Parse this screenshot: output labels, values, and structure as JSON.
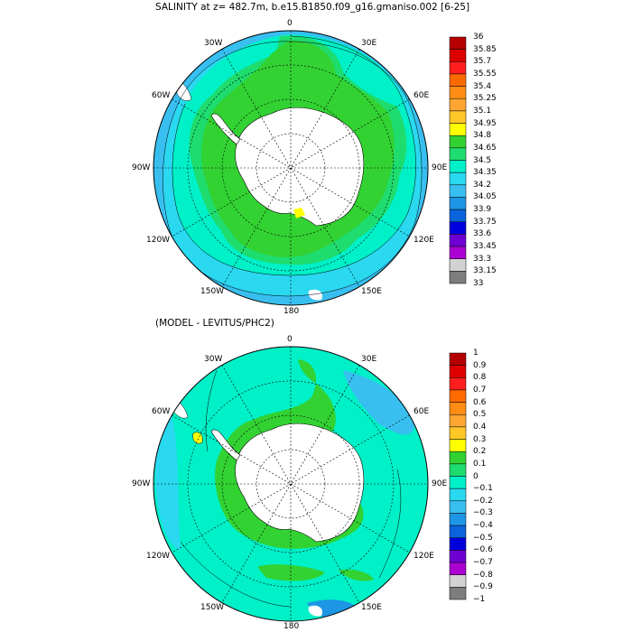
{
  "panels": [
    {
      "title": "SALINITY at z= 482.7m, b.e15.B1850.f09_g16.gmaniso.002 [6-25]",
      "lon_labels": {
        "top": "0",
        "bottom": "180",
        "left": "90W",
        "right": "90E",
        "w30": "30W",
        "e30": "30E",
        "w60": "60W",
        "e60": "60E",
        "w120": "120W",
        "e120": "120E",
        "w150": "150W",
        "e150": "150E"
      },
      "colorbar": [
        "36",
        "35.85",
        "35.7",
        "35.55",
        "35.4",
        "35.25",
        "35.1",
        "34.95",
        "34.8",
        "34.65",
        "34.5",
        "34.35",
        "34.2",
        "34.05",
        "33.9",
        "33.75",
        "33.6",
        "33.45",
        "33.3",
        "33.15",
        "33"
      ]
    },
    {
      "title": "(MODEL - LEVITUS/PHC2)",
      "lon_labels": {
        "top": "0",
        "bottom": "180",
        "left": "90W",
        "right": "90E",
        "w30": "30W",
        "e30": "30E",
        "w60": "60W",
        "e60": "60E",
        "w120": "120W",
        "e120": "120E",
        "w150": "150W",
        "e150": "150E"
      },
      "colorbar": [
        "1",
        "0.9",
        "0.8",
        "0.7",
        "0.6",
        "0.5",
        "0.4",
        "0.3",
        "0.2",
        "0.1",
        "0",
        "−0.1",
        "−0.2",
        "−0.3",
        "−0.4",
        "−0.5",
        "−0.6",
        "−0.7",
        "−0.8",
        "−0.9",
        "−1"
      ]
    }
  ],
  "colors": {
    "scale": [
      "#b40000",
      "#dc0000",
      "#ff1e1e",
      "#ff6a00",
      "#ff8c14",
      "#ffa532",
      "#ffc828",
      "#ffff00",
      "#32d232",
      "#1edc6e",
      "#00f0c8",
      "#2ad8f0",
      "#38bff0",
      "#1e96e6",
      "#0a64dc",
      "#0000dc",
      "#6e00d2",
      "#aa00d2",
      "#d2d2d2",
      "#7d7d7d"
    ],
    "land": "#ffffff"
  }
}
